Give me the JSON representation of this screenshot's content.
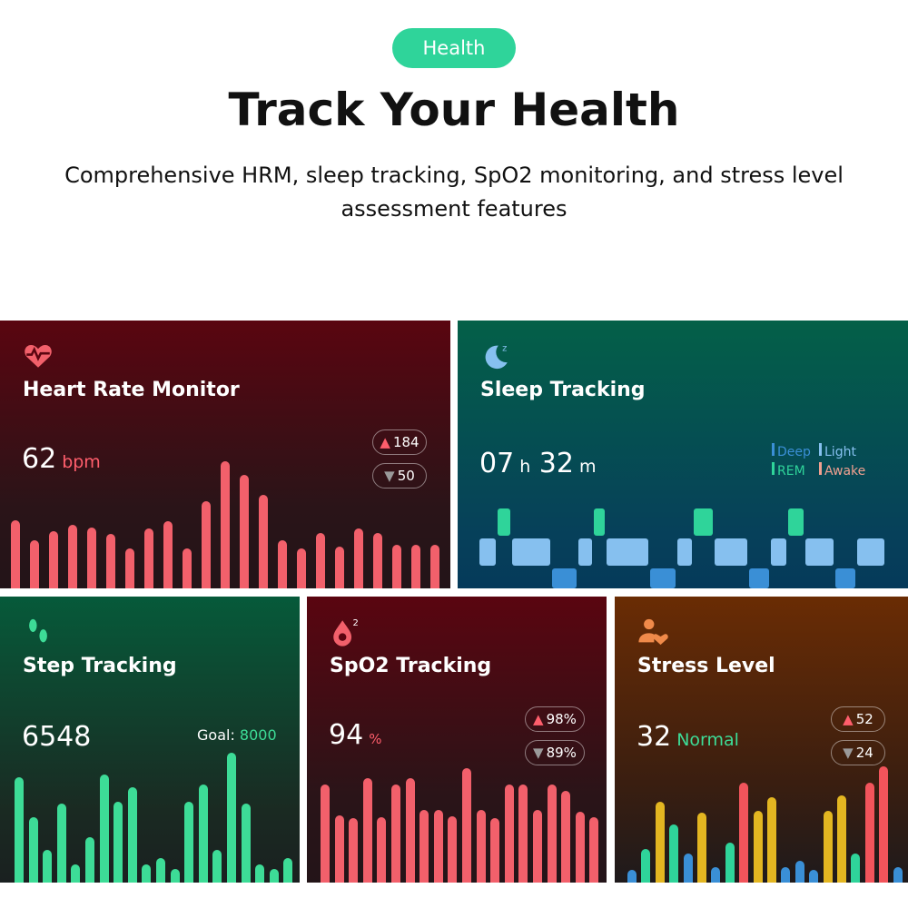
{
  "header": {
    "badge": "Health",
    "title": "Track Your Health",
    "subtitle": "Comprehensive HRM, sleep tracking, SpO2 monitoring, and stress level assessment features"
  },
  "heart": {
    "icon": "heart-pulse-icon",
    "title": "Heart Rate Monitor",
    "value": "62",
    "unit": "bpm",
    "max": "184",
    "min": "50",
    "bar_color": "#f2606b",
    "bars": [
      75,
      53,
      63,
      70,
      67,
      60,
      44,
      66,
      74,
      44,
      96,
      140,
      125,
      103,
      53,
      44,
      61,
      46,
      66,
      61,
      48,
      48,
      48
    ]
  },
  "sleep": {
    "icon": "moon-sleep-icon",
    "title": "Sleep Tracking",
    "hours": "07",
    "h": "h",
    "minutes": "32",
    "m": "m",
    "legend": [
      {
        "label": "Deep",
        "color": "#3a8fd6"
      },
      {
        "label": "Light",
        "color": "#86c0ef"
      },
      {
        "label": "REM",
        "color": "#2fd49a"
      },
      {
        "label": "Awake",
        "color": "#f0a090"
      }
    ],
    "segments": [
      [
        "Light",
        20
      ],
      [
        "REM",
        16
      ],
      [
        "Light",
        44
      ],
      [
        "Deep",
        29
      ],
      [
        "Light",
        17
      ],
      [
        "REM",
        14
      ],
      [
        "Light",
        48
      ],
      [
        "Deep",
        30
      ],
      [
        "Light",
        18
      ],
      [
        "REM",
        23
      ],
      [
        "Light",
        38
      ],
      [
        "Deep",
        24
      ],
      [
        "Light",
        19
      ],
      [
        "REM",
        19
      ],
      [
        "Light",
        33
      ],
      [
        "Deep",
        24
      ],
      [
        "Light",
        32
      ]
    ]
  },
  "steps": {
    "icon": "footsteps-icon",
    "title": "Step Tracking",
    "value": "6548",
    "goal_label": "Goal:",
    "goal": "8000",
    "bar_color": "#3ddc97",
    "bars": [
      116,
      72,
      36,
      87,
      20,
      50,
      119,
      89,
      105,
      20,
      27,
      15,
      89,
      108,
      36,
      143,
      87,
      20,
      15,
      27
    ]
  },
  "spo2": {
    "icon": "blood-drop-icon",
    "title": "SpO2 Tracking",
    "value": "94",
    "unit": "%",
    "max": "98%",
    "min": "89%",
    "bar_color": "#f2606b",
    "bars": [
      108,
      74,
      71,
      115,
      72,
      108,
      115,
      80,
      80,
      73,
      126,
      80,
      71,
      108,
      108,
      80,
      108,
      101,
      78,
      72
    ]
  },
  "stress": {
    "icon": "person-heart-icon",
    "title": "Stress Level",
    "value": "32",
    "status": "Normal",
    "max": "52",
    "min": "24",
    "colors": {
      "low": "#3a8fd6",
      "normal": "#2fd49a",
      "medium": "#e3b621",
      "high": "#f2545b"
    },
    "bars": [
      [
        "low",
        14
      ],
      [
        "normal",
        37
      ],
      [
        "medium",
        89
      ],
      [
        "normal",
        64
      ],
      [
        "low",
        32
      ],
      [
        "medium",
        77
      ],
      [
        "low",
        17
      ],
      [
        "normal",
        44
      ],
      [
        "high",
        110
      ],
      [
        "medium",
        79
      ],
      [
        "medium",
        94
      ],
      [
        "low",
        17
      ],
      [
        "low",
        24
      ],
      [
        "low",
        14
      ],
      [
        "medium",
        79
      ],
      [
        "medium",
        96
      ],
      [
        "normal",
        32
      ],
      [
        "high",
        110
      ],
      [
        "high",
        128
      ],
      [
        "low",
        17
      ]
    ]
  }
}
